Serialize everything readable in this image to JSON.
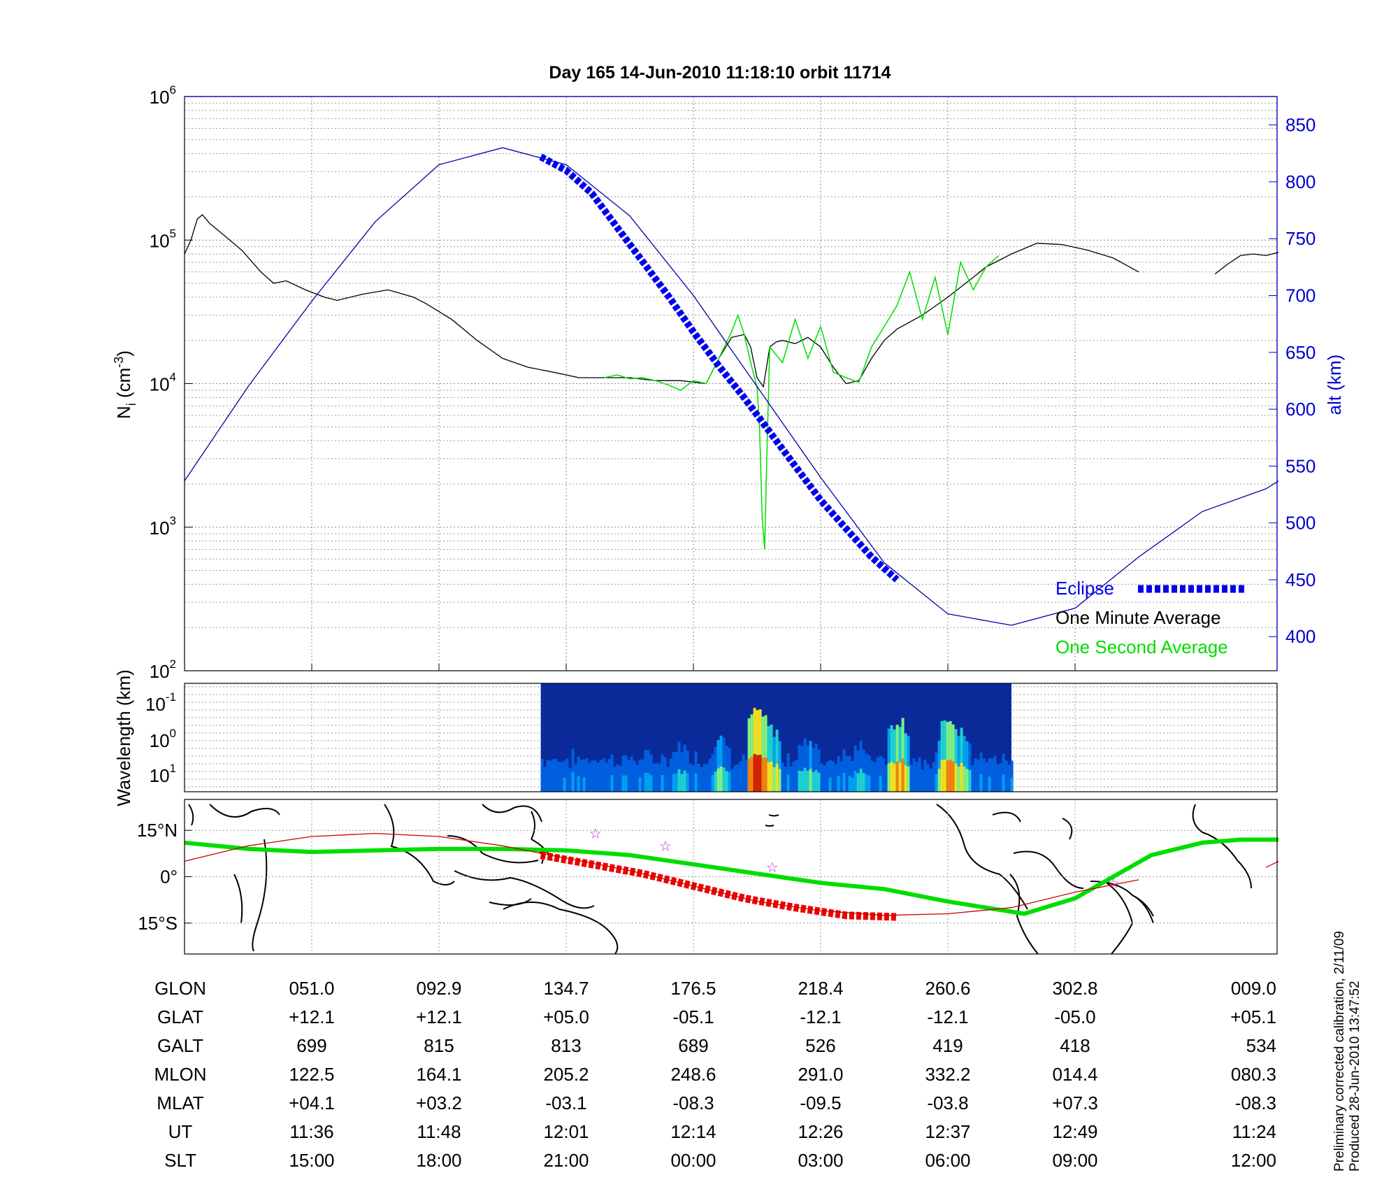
{
  "chart_data": [
    {
      "type": "line",
      "title": "Day 165  14-Jun-2010 11:18:10   orbit 11714",
      "ylabel": "N_i (cm^-3)",
      "ylabel_main": "N",
      "ylabel_sub": "i",
      "ylabel_unit_open": " (cm",
      "ylabel_unit_sup": "-3",
      "ylabel_unit_close": ")",
      "y_scale": "log",
      "ylim": [
        100,
        1000000
      ],
      "y_ticks": [
        {
          "base": "10",
          "exp": "2"
        },
        {
          "base": "10",
          "exp": "3"
        },
        {
          "base": "10",
          "exp": "4"
        },
        {
          "base": "10",
          "exp": "5"
        },
        {
          "base": "10",
          "exp": "6"
        }
      ],
      "y2label": "alt (km)",
      "y2lim": [
        370,
        875
      ],
      "y2_ticks": [
        "400",
        "450",
        "500",
        "550",
        "600",
        "650",
        "700",
        "750",
        "800",
        "850"
      ],
      "x_index_range": [
        0,
        8.6
      ],
      "legend_position": "bottom-right",
      "legend": {
        "eclipse": "Eclipse",
        "minute": "One Minute Average",
        "second": "One Second Average"
      },
      "colors": {
        "altitude": "#0000aa",
        "eclipse": "#0000ee",
        "minute": "#000000",
        "second": "#00dd00",
        "axis2": "#0000cc"
      },
      "series": [
        {
          "name": "One Minute Average",
          "x": [
            0,
            0.05,
            0.1,
            0.14,
            0.2,
            0.3,
            0.45,
            0.6,
            0.7,
            0.8,
            0.95,
            1.1,
            1.2,
            1.4,
            1.6,
            1.8,
            1.9,
            2.1,
            2.3,
            2.5,
            2.7,
            2.9,
            3.1,
            3.3,
            3.5,
            3.7,
            3.9,
            4.1,
            4.2,
            4.3,
            4.4,
            4.45,
            4.5,
            4.55,
            4.6,
            4.65,
            4.7,
            4.8,
            4.9,
            5.0,
            5.1,
            5.2,
            5.3,
            5.4,
            5.5,
            5.6,
            5.8,
            6.0,
            6.2,
            6.3,
            6.4,
            6.5,
            6.7,
            6.9,
            7.1,
            7.3,
            7.5
          ],
          "y": [
            80000,
            100000,
            140000,
            150000,
            130000,
            110000,
            85000,
            60000,
            50000,
            52000,
            45000,
            40000,
            38000,
            42000,
            45000,
            40000,
            36000,
            28000,
            20000,
            15000,
            13000,
            12000,
            11000,
            11000,
            11000,
            10500,
            10500,
            10000,
            15000,
            21000,
            22000,
            18000,
            11000,
            9500,
            18000,
            19500,
            20000,
            19000,
            21000,
            18000,
            13000,
            10000,
            10500,
            15000,
            20000,
            24000,
            30000,
            40000,
            55000,
            65000,
            72000,
            80000,
            95000,
            93000,
            85000,
            75000,
            60000
          ]
        },
        {
          "name": "One Minute Average (tail)",
          "x": [
            8.1,
            8.2,
            8.3,
            8.4,
            8.5,
            8.6
          ],
          "y": [
            58000,
            68000,
            78000,
            80000,
            78000,
            82000
          ]
        },
        {
          "name": "One Second Average",
          "x": [
            3.3,
            3.4,
            3.5,
            3.6,
            3.7,
            3.8,
            3.9,
            4.0,
            4.1,
            4.2,
            4.3,
            4.35,
            4.4,
            4.45,
            4.5,
            4.52,
            4.54,
            4.56,
            4.58,
            4.6,
            4.7,
            4.8,
            4.9,
            5.0,
            5.1,
            5.2,
            5.3,
            5.4,
            5.5,
            5.6,
            5.7,
            5.8,
            5.9,
            6.0,
            6.1,
            6.2,
            6.3,
            6.4
          ],
          "y": [
            11000,
            11500,
            10800,
            11000,
            10500,
            9800,
            9000,
            10500,
            10000,
            15000,
            23000,
            30000,
            22000,
            14000,
            9500,
            5000,
            1200,
            700,
            4000,
            18000,
            14000,
            28000,
            15000,
            25000,
            12000,
            11000,
            10200,
            18000,
            25000,
            35000,
            60000,
            28000,
            55000,
            22000,
            70000,
            45000,
            65000,
            78000
          ]
        },
        {
          "name": "altitude",
          "axis": "y2",
          "x": [
            0,
            0.5,
            1.0,
            1.5,
            2.0,
            2.5,
            3.0,
            3.5,
            4.0,
            4.5,
            5.0,
            5.5,
            6.0,
            6.5,
            7.0,
            7.5,
            8.0,
            8.5,
            8.6
          ],
          "y": [
            537,
            620,
            695,
            765,
            815,
            830,
            815,
            770,
            700,
            620,
            540,
            465,
            420,
            410,
            425,
            470,
            510,
            530,
            537
          ]
        },
        {
          "name": "Eclipse",
          "axis": "y2",
          "x": [
            2.8,
            3.0,
            3.2,
            3.4,
            3.6,
            3.8,
            4.0,
            4.2,
            4.4,
            4.6,
            4.8,
            5.0,
            5.2,
            5.4,
            5.6
          ],
          "y": [
            822,
            810,
            790,
            760,
            730,
            700,
            668,
            638,
            610,
            580,
            550,
            520,
            495,
            470,
            450
          ]
        }
      ]
    },
    {
      "type": "heatmap",
      "ylabel": "Wavelength (km)",
      "y_ticks": [
        {
          "base": "10",
          "exp": "-1"
        },
        {
          "base": "10",
          "exp": "0"
        },
        {
          "base": "10",
          "exp": "1"
        }
      ],
      "x_index_range": [
        2.8,
        6.5
      ]
    },
    {
      "type": "line",
      "ylabel_ticks": [
        "15°N",
        "0°",
        "15°S"
      ],
      "ylim": [
        -25,
        25
      ],
      "series": [
        {
          "name": "satellite track (geographic)",
          "color": "#00dd00",
          "x": [
            0,
            0.5,
            1.0,
            1.5,
            2.0,
            2.5,
            3.0,
            3.5,
            4.0,
            4.5,
            5.0,
            5.5,
            6.0,
            6.3,
            6.6,
            7.0,
            7.3,
            7.6,
            8.0,
            8.3,
            8.6
          ],
          "y": [
            11,
            9,
            8,
            8.5,
            9,
            9,
            8.5,
            7,
            4,
            1,
            -2,
            -4,
            -8,
            -10,
            -12,
            -7,
            0,
            7,
            11,
            12,
            12
          ]
        },
        {
          "name": "eclipse track",
          "color": "#ee0000",
          "x": [
            2.8,
            3.2,
            3.6,
            4.0,
            4.4,
            4.8,
            5.2,
            5.6
          ],
          "y": [
            7,
            4,
            1,
            -3,
            -7,
            -10,
            -12.5,
            -13
          ]
        },
        {
          "name": "magnetic equator",
          "color": "#cc0000",
          "x": [
            0,
            0.5,
            1.0,
            1.5,
            2.0,
            2.5,
            3.0,
            3.5,
            4.0,
            4.5,
            5.0,
            5.5,
            6.0,
            6.5,
            7.0,
            7.5,
            8.0,
            8.5,
            8.6
          ],
          "y": [
            5,
            10,
            13,
            14,
            13,
            10,
            6,
            2,
            -3,
            -8,
            -11,
            -12.5,
            -12,
            -10,
            -5,
            -1,
            null,
            3,
            5
          ]
        }
      ],
      "stars": [
        {
          "x": 3.23,
          "y": 14
        },
        {
          "x": 3.78,
          "y": 10
        },
        {
          "x": 4.62,
          "y": 3
        },
        {
          "x": 7.3,
          "y": -2
        }
      ]
    }
  ],
  "table": {
    "rows": [
      {
        "label": "GLON",
        "values": [
          "051.0",
          "092.9",
          "134.7",
          "176.5",
          "218.4",
          "260.6",
          "302.8",
          "009.0"
        ]
      },
      {
        "label": "GLAT",
        "values": [
          "+12.1",
          "+12.1",
          "+05.0",
          "-05.1",
          "-12.1",
          "-12.1",
          "-05.0",
          "+05.1"
        ]
      },
      {
        "label": "GALT",
        "values": [
          "699",
          "815",
          "813",
          "689",
          "526",
          "419",
          "418",
          "534"
        ]
      },
      {
        "label": "MLON",
        "values": [
          "122.5",
          "164.1",
          "205.2",
          "248.6",
          "291.0",
          "332.2",
          "014.4",
          "080.3"
        ]
      },
      {
        "label": "MLAT",
        "values": [
          "+04.1",
          "+03.2",
          "-03.1",
          "-08.3",
          "-09.5",
          "-03.8",
          "+07.3",
          "-08.3"
        ]
      },
      {
        "label": "UT",
        "values": [
          "11:36",
          "11:48",
          "12:01",
          "12:14",
          "12:26",
          "12:37",
          "12:49",
          "11:24"
        ]
      },
      {
        "label": "SLT",
        "values": [
          "15:00",
          "18:00",
          "21:00",
          "00:00",
          "03:00",
          "06:00",
          "09:00",
          "12:00"
        ]
      }
    ]
  },
  "footnote": {
    "line1": "Preliminary corrected calibration, 2/11/09",
    "line2": "Produced 28-Jun-2010 13:47:52"
  }
}
